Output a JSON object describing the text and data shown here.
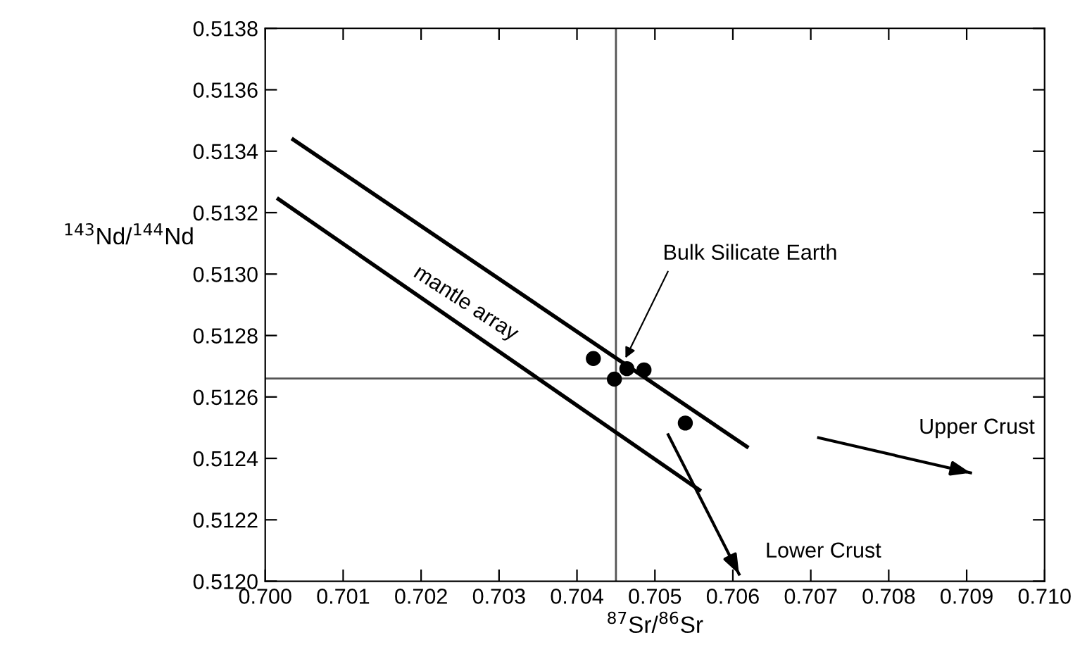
{
  "chart_data": {
    "type": "scatter",
    "xlabel": "$^{87}$Sr/$^{86}$Sr",
    "ylabel": "$^{143}$Nd/$^{144}$Nd",
    "xlim": [
      0.7,
      0.71
    ],
    "ylim": [
      0.512,
      0.5138
    ],
    "xticks": [
      {
        "value": 0.7,
        "label": "0.700"
      },
      {
        "value": 0.701,
        "label": "0.701"
      },
      {
        "value": 0.702,
        "label": "0.702"
      },
      {
        "value": 0.703,
        "label": "0.703"
      },
      {
        "value": 0.704,
        "label": "0.704"
      },
      {
        "value": 0.705,
        "label": "0.705"
      },
      {
        "value": 0.706,
        "label": "0.706"
      },
      {
        "value": 0.707,
        "label": "0.707"
      },
      {
        "value": 0.708,
        "label": "0.708"
      },
      {
        "value": 0.709,
        "label": "0.709"
      },
      {
        "value": 0.71,
        "label": "0.710"
      }
    ],
    "yticks": [
      {
        "value": 0.512,
        "label": "0.5120"
      },
      {
        "value": 0.5122,
        "label": "0.5122"
      },
      {
        "value": 0.5124,
        "label": "0.5124"
      },
      {
        "value": 0.5126,
        "label": "0.5126"
      },
      {
        "value": 0.5128,
        "label": "0.5128"
      },
      {
        "value": 0.513,
        "label": "0.5130"
      },
      {
        "value": 0.5132,
        "label": "0.5132"
      },
      {
        "value": 0.5134,
        "label": "0.5134"
      },
      {
        "value": 0.5136,
        "label": "0.5136"
      },
      {
        "value": 0.5138,
        "label": "0.5138"
      }
    ],
    "grid": false,
    "series": [
      {
        "marker": "circle",
        "color": "#000000",
        "x": [
          0.70421,
          0.70448,
          0.70464,
          0.70486,
          0.70539
        ],
        "values": [
          0.512725,
          0.512658,
          0.512692,
          0.512688,
          0.512515
        ]
      },
      {
        "type": "line",
        "color": "#000000",
        "x": [
          0.70036,
          0.70618
        ],
        "values": [
          0.513438,
          0.512438
        ]
      },
      {
        "type": "line",
        "color": "#000000",
        "x": [
          0.70017,
          0.70557
        ],
        "values": [
          0.513244,
          0.512297
        ]
      },
      {
        "type": "line",
        "color": "#000000",
        "x": [
          0.70517,
          0.70608
        ],
        "values": [
          0.512477,
          0.512023
        ]
      },
      {
        "type": "line",
        "color": "#000000",
        "x": [
          0.7071,
          0.70905
        ],
        "values": [
          0.512467,
          0.512353
        ]
      }
    ],
    "ref_lines": [
      {
        "axis": "x",
        "value": 0.7045,
        "color": "#555555"
      },
      {
        "axis": "y",
        "value": 0.51266,
        "color": "#555555"
      }
    ],
    "annotations": [
      "mantle array",
      {
        "text": "Bulk Silicate Earth",
        "x": 0.7046,
        "y": 0.512715
      },
      "Lower Crust",
      "Upper Crust"
    ]
  }
}
